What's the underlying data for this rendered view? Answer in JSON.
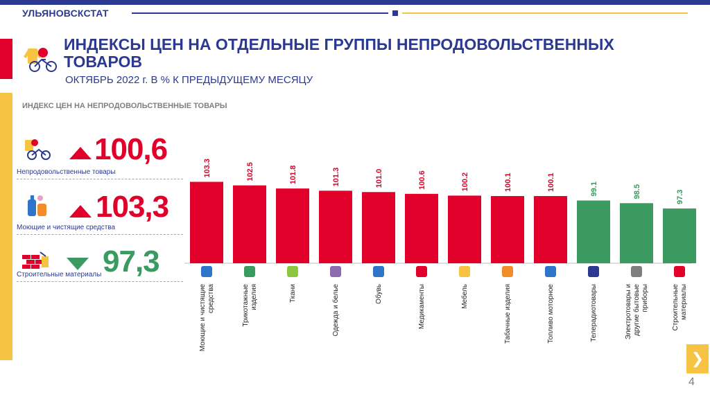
{
  "header": {
    "brand": "УЛЬЯНОВСКСТАТ"
  },
  "title": "ИНДЕКСЫ ЦЕН НА ОТДЕЛЬНЫЕ ГРУППЫ НЕПРОДОВОЛЬСТВЕННЫХ ТОВАРОВ",
  "subtitle": "ОКТЯБРЬ 2022 г. В % К ПРЕДЫДУЩЕМУ МЕСЯЦУ",
  "section_label": "ИНДЕКС ЦЕН НА НЕПРОДОВОЛЬСТВЕННЫЕ ТОВАРЫ",
  "summary": [
    {
      "label": "Непродовольственные товары",
      "value": "100,6",
      "direction": "up",
      "color": "#e0002a",
      "icon": "bicycle-toys-icon"
    },
    {
      "label": "Моющие и чистящие средства",
      "value": "103,3",
      "direction": "up",
      "color": "#e0002a",
      "icon": "detergent-bottles-icon"
    },
    {
      "label": "Строительные материалы",
      "value": "97,3",
      "direction": "down",
      "color": "#3a9a60",
      "icon": "brick-wall-icon"
    }
  ],
  "colors": {
    "up": "#e0002a",
    "down": "#3a9a60",
    "brand": "#2b3990",
    "accent": "#f6c342"
  },
  "chart_data": {
    "type": "bar",
    "categories": [
      "Моющие и чистящие средства",
      "Трикотажные изделия",
      "Ткани",
      "Одежда и белье",
      "Обувь",
      "Медикаменты",
      "Мебель",
      "Табачные изделия",
      "Топливо моторное",
      "Телерадиотовары",
      "Электротовары и другие бытовые приборы",
      "Строительные материалы"
    ],
    "values": [
      103.3,
      102.5,
      101.8,
      101.3,
      101.0,
      100.6,
      100.2,
      100.1,
      100.1,
      99.1,
      98.5,
      97.3
    ],
    "data_labels": [
      "103.3",
      "102.5",
      "101.8",
      "101.3",
      "101.0",
      "100.6",
      "100.2",
      "100.1",
      "100.1",
      "99.1",
      "98.5",
      "97.3"
    ],
    "colors": [
      "#e0002a",
      "#e0002a",
      "#e0002a",
      "#e0002a",
      "#e0002a",
      "#e0002a",
      "#e0002a",
      "#e0002a",
      "#e0002a",
      "#3a9a60",
      "#3a9a60",
      "#3a9a60"
    ],
    "icons": [
      "detergent-icon",
      "sweater-icon",
      "fabric-icon",
      "dress-icon",
      "shoe-icon",
      "medicine-icon",
      "furniture-icon",
      "cigarette-icon",
      "fuel-canister-icon",
      "tv-icon",
      "appliances-icon",
      "bricks-icon"
    ],
    "ylim": [
      85,
      104
    ],
    "grid": false,
    "legend": "none"
  },
  "footer": {
    "page_number": "4",
    "next_arrow": "❯"
  }
}
